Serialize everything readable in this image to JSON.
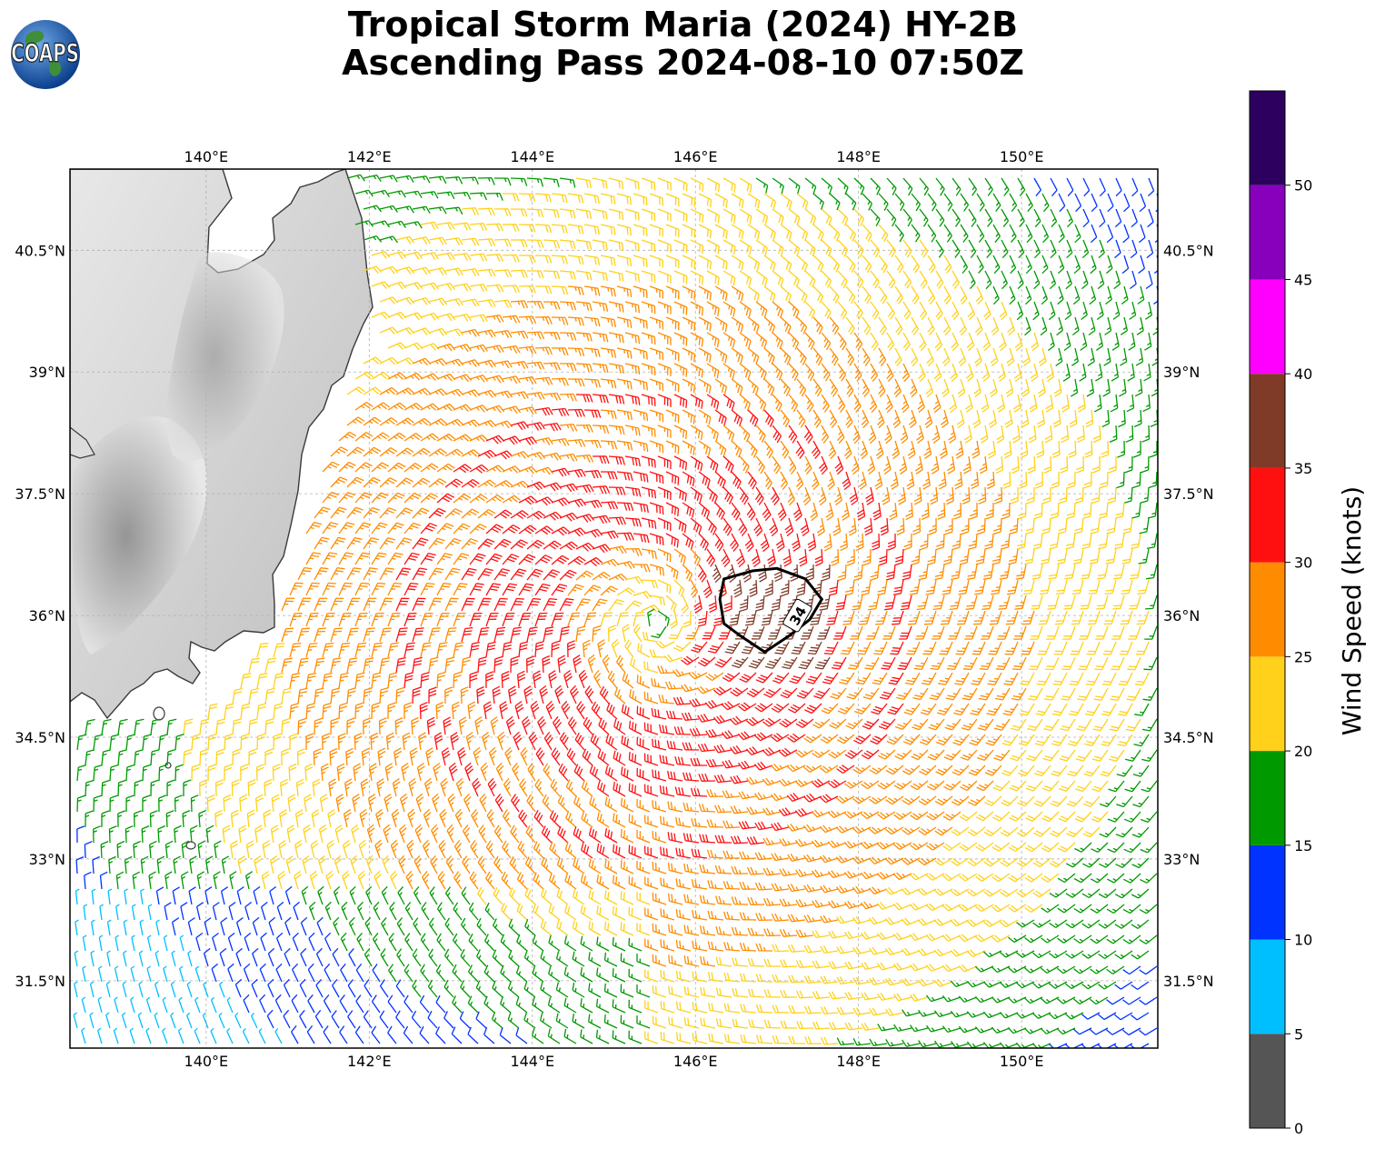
{
  "title": {
    "line1": "Tropical Storm Maria (2024) HY-2B",
    "line2": "Ascending Pass 2024-08-10 07:50Z"
  },
  "logo": {
    "text": "COAPS",
    "icon": "globe-logo"
  },
  "map": {
    "lon_range": [
      138.33,
      151.67
    ],
    "lat_range": [
      30.67,
      41.5
    ],
    "lon_ticks": [
      {
        "value": 140,
        "label": "140°E"
      },
      {
        "value": 142,
        "label": "142°E"
      },
      {
        "value": 144,
        "label": "144°E"
      },
      {
        "value": 146,
        "label": "146°E"
      },
      {
        "value": 148,
        "label": "148°E"
      },
      {
        "value": 150,
        "label": "150°E"
      }
    ],
    "lat_ticks": [
      {
        "value": 31.5,
        "label": "31.5°N"
      },
      {
        "value": 33,
        "label": "33°N"
      },
      {
        "value": 34.5,
        "label": "34.5°N"
      },
      {
        "value": 36,
        "label": "36°N"
      },
      {
        "value": 37.5,
        "label": "37.5°N"
      },
      {
        "value": 39,
        "label": "39°N"
      },
      {
        "value": 40.5,
        "label": "40.5°N"
      }
    ],
    "gridlines": true,
    "land_shading": "grayscale terrain",
    "storm_center": {
      "lon": 145.5,
      "lat": 35.9
    },
    "contour_34kt": {
      "label": "34",
      "points": [
        [
          146.35,
          36.45
        ],
        [
          146.7,
          36.55
        ],
        [
          147.0,
          36.58
        ],
        [
          147.35,
          36.45
        ],
        [
          147.55,
          36.2
        ],
        [
          147.4,
          35.95
        ],
        [
          147.15,
          35.75
        ],
        [
          146.85,
          35.55
        ],
        [
          146.55,
          35.75
        ],
        [
          146.35,
          35.9
        ],
        [
          146.3,
          36.2
        ]
      ]
    }
  },
  "colorbar": {
    "title": "Wind Speed (knots)",
    "ticks": [
      "0",
      "5",
      "10",
      "15",
      "20",
      "25",
      "30",
      "35",
      "40",
      "45",
      "50"
    ],
    "bins": [
      {
        "min": 0,
        "max": 5,
        "color": "#555555"
      },
      {
        "min": 5,
        "max": 10,
        "color": "#00bfff"
      },
      {
        "min": 10,
        "max": 15,
        "color": "#0033ff"
      },
      {
        "min": 15,
        "max": 20,
        "color": "#009900"
      },
      {
        "min": 20,
        "max": 25,
        "color": "#ffd11a"
      },
      {
        "min": 25,
        "max": 30,
        "color": "#ff8c00"
      },
      {
        "min": 30,
        "max": 35,
        "color": "#ff1010"
      },
      {
        "min": 35,
        "max": 40,
        "color": "#7f3b28"
      },
      {
        "min": 40,
        "max": 45,
        "color": "#ff00ff"
      },
      {
        "min": 45,
        "max": 50,
        "color": "#8800bb"
      },
      {
        "min": 50,
        "max": 55,
        "color": "#2d0060"
      }
    ]
  }
}
